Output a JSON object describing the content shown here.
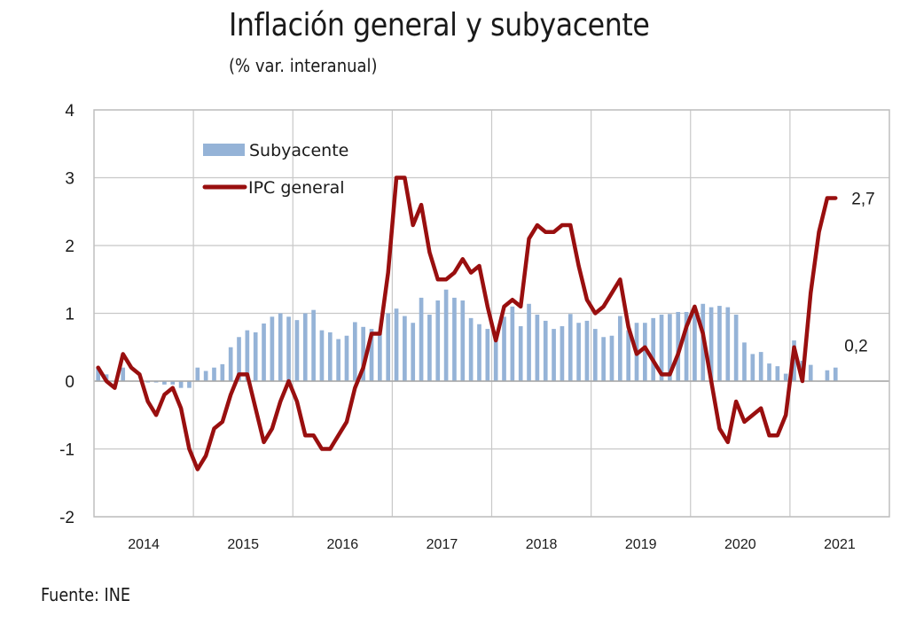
{
  "chart_data": {
    "type": "bar+line",
    "title": "Inflación general y subyacente",
    "subtitle": "(% var. interanual)",
    "source": "Fuente: INE",
    "xlabel": "",
    "ylabel": "",
    "ylim": [
      -2,
      4
    ],
    "yticks": [
      "-2",
      "-1",
      "0",
      "1",
      "2",
      "3",
      "4"
    ],
    "ytick_values": [
      -2,
      -1,
      0,
      1,
      2,
      3,
      4
    ],
    "grid": true,
    "legend_position": "top-left",
    "x_start": "2014-01",
    "x_end": "2021-06",
    "frequency": "monthly",
    "year_labels": [
      "2014",
      "2015",
      "2016",
      "2017",
      "2018",
      "2019",
      "2020",
      "2021"
    ],
    "series": [
      {
        "name": "Subyacente",
        "type": "bar",
        "color": "#95b3d7",
        "values": [
          0.2,
          0.1,
          0.0,
          0.2,
          0.0,
          0.0,
          -0.02,
          -0.02,
          -0.05,
          -0.05,
          -0.1,
          -0.1,
          0.2,
          0.15,
          0.2,
          0.25,
          0.5,
          0.65,
          0.75,
          0.72,
          0.85,
          0.95,
          1.0,
          0.95,
          0.9,
          1.0,
          1.05,
          0.75,
          0.72,
          0.62,
          0.67,
          0.87,
          0.8,
          0.77,
          0.7,
          1.0,
          1.07,
          0.96,
          0.86,
          1.23,
          0.98,
          1.19,
          1.35,
          1.23,
          1.19,
          0.93,
          0.84,
          0.77,
          0.7,
          0.95,
          1.1,
          0.81,
          1.14,
          0.98,
          0.89,
          0.77,
          0.81,
          0.99,
          0.86,
          0.89,
          0.77,
          0.65,
          0.67,
          0.96,
          0.75,
          0.86,
          0.86,
          0.93,
          0.98,
          0.99,
          1.02,
          1.02,
          1.05,
          1.14,
          1.09,
          1.11,
          1.09,
          0.98,
          0.57,
          0.4,
          0.43,
          0.26,
          0.22,
          0.11,
          0.6,
          0.3,
          0.24,
          0.0,
          0.16,
          0.2
        ],
        "last_label": "0,2"
      },
      {
        "name": "IPC general",
        "type": "line",
        "color": "#990f0f",
        "values": [
          0.2,
          0.0,
          -0.1,
          0.4,
          0.2,
          0.1,
          -0.3,
          -0.5,
          -0.2,
          -0.1,
          -0.4,
          -1.0,
          -1.3,
          -1.1,
          -0.7,
          -0.6,
          -0.2,
          0.1,
          0.1,
          -0.4,
          -0.9,
          -0.7,
          -0.3,
          0.0,
          -0.3,
          -0.8,
          -0.8,
          -1.0,
          -1.0,
          -0.8,
          -0.6,
          -0.1,
          0.2,
          0.7,
          0.7,
          1.6,
          3.0,
          3.0,
          2.3,
          2.6,
          1.9,
          1.5,
          1.5,
          1.6,
          1.8,
          1.6,
          1.7,
          1.1,
          0.6,
          1.1,
          1.2,
          1.1,
          2.1,
          2.3,
          2.2,
          2.2,
          2.3,
          2.3,
          1.7,
          1.2,
          1.0,
          1.1,
          1.3,
          1.5,
          0.8,
          0.4,
          0.5,
          0.3,
          0.1,
          0.1,
          0.4,
          0.8,
          1.1,
          0.7,
          0.0,
          -0.7,
          -0.9,
          -0.3,
          -0.6,
          -0.5,
          -0.4,
          -0.8,
          -0.8,
          -0.5,
          0.5,
          0.0,
          1.3,
          2.2,
          2.7,
          2.7
        ],
        "last_label": "2,7"
      }
    ]
  }
}
